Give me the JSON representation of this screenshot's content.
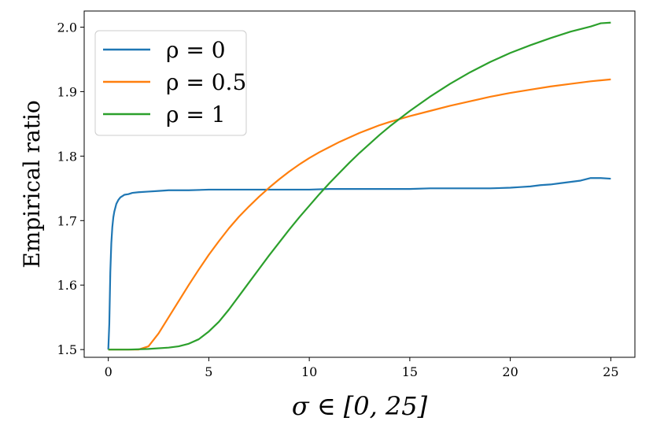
{
  "chart_data": {
    "type": "line",
    "xlabel": "σ ∈ [0, 25]",
    "ylabel": "Empirical ratio",
    "xlim": [
      -1.2,
      26.2
    ],
    "ylim": [
      1.488,
      2.025
    ],
    "xticks": [
      0,
      5,
      10,
      15,
      20,
      25
    ],
    "xtick_labels": [
      "0",
      "5",
      "10",
      "15",
      "20",
      "25"
    ],
    "yticks": [
      1.5,
      1.6,
      1.7,
      1.8,
      1.9,
      2.0
    ],
    "ytick_labels": [
      "1.5",
      "1.6",
      "1.7",
      "1.8",
      "1.9",
      "2.0"
    ],
    "grid": false,
    "legend_position": "top-left",
    "series": [
      {
        "name": "ρ = 0",
        "color": "#1f77b4",
        "x": [
          0,
          0.05,
          0.1,
          0.15,
          0.2,
          0.25,
          0.3,
          0.4,
          0.5,
          0.6,
          0.7,
          0.8,
          1.0,
          1.2,
          1.5,
          2.0,
          2.5,
          3,
          4,
          5,
          6,
          7,
          8,
          9,
          10,
          11,
          12,
          13,
          14,
          15,
          16,
          17,
          18,
          19,
          20,
          20.5,
          21,
          21.5,
          22,
          22.5,
          23,
          23.5,
          24,
          24.5,
          25
        ],
        "y": [
          1.5,
          1.54,
          1.62,
          1.665,
          1.69,
          1.705,
          1.714,
          1.726,
          1.732,
          1.736,
          1.738,
          1.74,
          1.741,
          1.743,
          1.744,
          1.745,
          1.746,
          1.747,
          1.747,
          1.748,
          1.748,
          1.748,
          1.748,
          1.748,
          1.748,
          1.749,
          1.749,
          1.749,
          1.749,
          1.749,
          1.75,
          1.75,
          1.75,
          1.75,
          1.751,
          1.752,
          1.753,
          1.755,
          1.756,
          1.758,
          1.76,
          1.762,
          1.766,
          1.766,
          1.765
        ]
      },
      {
        "name": "ρ = 0.5",
        "color": "#ff7f0e",
        "x": [
          0,
          0.5,
          1,
          1.5,
          2,
          2.5,
          3,
          3.5,
          4,
          4.5,
          5,
          5.5,
          6,
          6.5,
          7,
          7.5,
          8,
          8.5,
          9,
          9.5,
          10,
          10.5,
          11,
          11.5,
          12,
          12.5,
          13,
          13.5,
          14,
          15,
          16,
          17,
          18,
          19,
          20,
          21,
          22,
          23,
          24,
          25
        ],
        "y": [
          1.5,
          1.5,
          1.5,
          1.5,
          1.505,
          1.525,
          1.55,
          1.575,
          1.6,
          1.624,
          1.647,
          1.668,
          1.688,
          1.706,
          1.722,
          1.737,
          1.751,
          1.764,
          1.776,
          1.787,
          1.797,
          1.806,
          1.814,
          1.822,
          1.829,
          1.836,
          1.842,
          1.848,
          1.853,
          1.862,
          1.87,
          1.878,
          1.885,
          1.892,
          1.898,
          1.903,
          1.908,
          1.912,
          1.916,
          1.919
        ]
      },
      {
        "name": "ρ = 1",
        "color": "#2ca02c",
        "x": [
          0,
          1,
          2,
          3,
          3.5,
          4,
          4.5,
          5,
          5.5,
          6,
          6.5,
          7,
          7.5,
          8,
          8.5,
          9,
          9.5,
          10,
          10.5,
          11,
          11.5,
          12,
          12.5,
          13,
          13.5,
          14,
          15,
          16,
          17,
          18,
          19,
          20,
          21,
          22,
          23,
          24,
          24.5,
          25
        ],
        "y": [
          1.5,
          1.5,
          1.501,
          1.503,
          1.505,
          1.509,
          1.516,
          1.528,
          1.543,
          1.562,
          1.583,
          1.604,
          1.625,
          1.646,
          1.666,
          1.686,
          1.705,
          1.723,
          1.741,
          1.758,
          1.774,
          1.79,
          1.805,
          1.819,
          1.833,
          1.846,
          1.87,
          1.892,
          1.912,
          1.93,
          1.946,
          1.96,
          1.972,
          1.983,
          1.993,
          2.001,
          2.006,
          2.007
        ]
      }
    ]
  }
}
